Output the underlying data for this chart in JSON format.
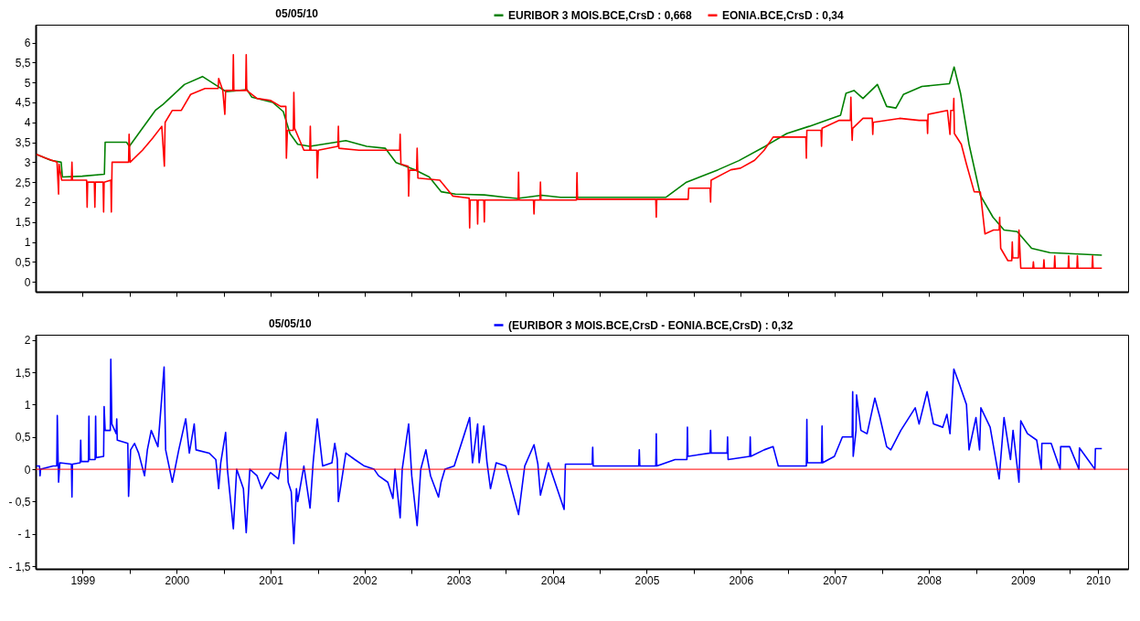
{
  "chart_data": [
    {
      "type": "line",
      "title": "05/05/10",
      "legend": "top",
      "tick_labels": "y",
      "xlim": [
        "1999-01-01",
        "2010-08-15"
      ],
      "xticks": [
        {
          "value": "1999-07-02",
          "label": null
        },
        {
          "value": "2000-01-01",
          "label": null
        },
        {
          "value": "2000-07-02",
          "label": null
        },
        {
          "value": "2001-01-01",
          "label": null
        },
        {
          "value": "2001-07-02",
          "label": null
        },
        {
          "value": "2002-01-01",
          "label": null
        },
        {
          "value": "2002-07-02",
          "label": null
        },
        {
          "value": "2003-01-01",
          "label": null
        },
        {
          "value": "2003-07-02",
          "label": null
        },
        {
          "value": "2004-01-01",
          "label": null
        },
        {
          "value": "2004-07-02",
          "label": null
        },
        {
          "value": "2005-01-01",
          "label": null
        },
        {
          "value": "2005-07-02",
          "label": null
        },
        {
          "value": "2006-01-01",
          "label": null
        },
        {
          "value": "2006-07-02",
          "label": null
        },
        {
          "value": "2007-01-01",
          "label": null
        },
        {
          "value": "2007-07-02",
          "label": null
        },
        {
          "value": "2008-01-01",
          "label": null
        },
        {
          "value": "2008-07-02",
          "label": null
        },
        {
          "value": "2009-01-01",
          "label": null
        },
        {
          "value": "2009-07-02",
          "label": null
        },
        {
          "value": "2010-01-01",
          "label": null
        },
        {
          "value": "2010-04-20",
          "label": null
        }
      ],
      "ylim": [
        -0.25,
        6.45
      ],
      "yticks": [
        0,
        {
          "value": 0.5,
          "label": "0,5"
        },
        1,
        {
          "value": 1.5,
          "label": "1,5"
        },
        2,
        {
          "value": 2.5,
          "label": "2,5"
        },
        3,
        {
          "value": 3.5,
          "label": "3,5"
        },
        4,
        {
          "value": 4.5,
          "label": "4,5"
        },
        5,
        {
          "value": 5.5,
          "label": "5,5"
        },
        6
      ],
      "series": [
        {
          "name": "EURIBOR 3 MOIS.BCE,CrsD : 0,668",
          "color": "#008000",
          "x": [
            "1999-01-04",
            "1999-03-01",
            "1999-04-10",
            "1999-04-15",
            "1999-07-01",
            "1999-09-25",
            "1999-09-28",
            "1999-12-20",
            "1999-12-31",
            "2000-02-05",
            "2000-04-10",
            "2000-05-10",
            "2000-08-01",
            "2000-10-10",
            "2000-12-10",
            "2001-01-10",
            "2001-04-01",
            "2001-04-20",
            "2001-07-10",
            "2001-08-20",
            "2001-09-15",
            "2001-10-15",
            "2001-12-01",
            "2002-04-20",
            "2002-07-10",
            "2002-09-20",
            "2002-11-01",
            "2003-01-10",
            "2003-03-10",
            "2003-04-25",
            "2003-06-20",
            "2003-10-10",
            "2004-01-01",
            "2004-02-15",
            "2004-05-20",
            "2004-08-01",
            "2005-09-15",
            "2005-12-01",
            "2006-04-05",
            "2006-06-25",
            "2006-10-05",
            "2006-12-28",
            "2007-03-25",
            "2007-07-25",
            "2007-08-15",
            "2007-09-15",
            "2007-10-20",
            "2007-12-15",
            "2008-01-20",
            "2008-02-25",
            "2008-03-25",
            "2008-06-05",
            "2008-09-20",
            "2008-10-08",
            "2008-11-02",
            "2008-12-05",
            "2009-01-18",
            "2009-03-08",
            "2009-04-20",
            "2009-06-10",
            "2009-08-05",
            "2009-10-15",
            "2010-05-05"
          ],
          "values": [
            3.2,
            3.05,
            3.0,
            2.63,
            2.65,
            2.7,
            3.5,
            3.5,
            3.4,
            3.72,
            4.3,
            4.45,
            4.95,
            5.15,
            4.9,
            4.77,
            4.82,
            4.63,
            4.5,
            4.27,
            3.72,
            3.45,
            3.4,
            3.54,
            3.4,
            3.35,
            2.99,
            2.82,
            2.63,
            2.26,
            2.2,
            2.18,
            2.12,
            2.09,
            2.17,
            2.12,
            2.12,
            2.49,
            2.81,
            3.04,
            3.4,
            3.72,
            3.9,
            4.18,
            4.73,
            4.8,
            4.6,
            4.95,
            4.4,
            4.36,
            4.7,
            4.9,
            4.97,
            5.39,
            4.73,
            3.45,
            2.17,
            1.62,
            1.3,
            1.26,
            0.84,
            0.73,
            0.668
          ]
        },
        {
          "name": "EONIA.BCE,CrsD : 0,34",
          "color": "#ff0000",
          "x": [
            "1999-01-04",
            "1999-02-10",
            "1999-03-25",
            "1999-03-31",
            "1999-04-02",
            "1999-04-12",
            "1999-05-20",
            "1999-05-22",
            "1999-05-24",
            "1999-07-18",
            "1999-07-20",
            "1999-07-22",
            "1999-08-17",
            "1999-08-19",
            "1999-08-21",
            "1999-09-20",
            "1999-09-22",
            "1999-09-24",
            "1999-10-20",
            "1999-10-22",
            "1999-10-25",
            "1999-12-28",
            "1999-12-30",
            "2000-01-03",
            "2000-02-20",
            "2000-03-30",
            "2000-05-05",
            "2000-05-15",
            "2000-05-18",
            "2000-06-15",
            "2000-07-20",
            "2000-08-25",
            "2000-10-20",
            "2000-12-10",
            "2000-12-12",
            "2000-12-28",
            "2001-01-05",
            "2001-01-08",
            "2001-02-05",
            "2001-02-07",
            "2001-02-09",
            "2001-03-27",
            "2001-03-29",
            "2001-03-31",
            "2001-05-10",
            "2001-07-01",
            "2001-08-10",
            "2001-08-30",
            "2001-09-01",
            "2001-09-05",
            "2001-09-28",
            "2001-09-30",
            "2001-10-03",
            "2001-11-08",
            "2001-12-01",
            "2001-12-03",
            "2001-12-05",
            "2001-12-28",
            "2001-12-30",
            "2002-01-03",
            "2002-03-20",
            "2002-03-22",
            "2002-03-24",
            "2002-06-10",
            "2002-09-15",
            "2002-11-15",
            "2002-11-17",
            "2002-11-20",
            "2002-12-18",
            "2002-12-20",
            "2002-12-23",
            "2003-01-20",
            "2003-01-22",
            "2003-01-25",
            "2003-04-20",
            "2003-06-10",
            "2003-08-12",
            "2003-08-14",
            "2003-08-16",
            "2003-09-12",
            "2003-09-14",
            "2003-09-16",
            "2003-10-08",
            "2003-10-10",
            "2003-10-12",
            "2004-02-18",
            "2004-02-20",
            "2004-02-22",
            "2004-04-18",
            "2004-04-20",
            "2004-04-22",
            "2004-05-13",
            "2004-05-15",
            "2004-05-17",
            "2004-10-02",
            "2004-10-04",
            "2004-10-06",
            "2005-08-06",
            "2005-08-08",
            "2005-08-10",
            "2005-12-10",
            "2005-12-12",
            "2006-03-05",
            "2006-03-07",
            "2006-03-09",
            "2006-05-25",
            "2006-07-01",
            "2006-08-25",
            "2006-10-01",
            "2006-11-05",
            "2007-03-12",
            "2007-03-14",
            "2007-03-16",
            "2007-05-10",
            "2007-05-12",
            "2007-05-14",
            "2007-07-20",
            "2007-09-01",
            "2007-09-03",
            "2007-09-05",
            "2007-09-08",
            "2007-09-10",
            "2007-10-20",
            "2007-11-25",
            "2007-11-27",
            "2007-11-29",
            "2008-03-10",
            "2008-05-25",
            "2008-06-25",
            "2008-06-27",
            "2008-06-29",
            "2008-09-12",
            "2008-09-22",
            "2008-09-25",
            "2008-10-05",
            "2008-10-07",
            "2008-10-09",
            "2008-11-05",
            "2008-11-25",
            "2008-12-25",
            "2009-01-18",
            "2009-02-05",
            "2009-03-10",
            "2009-04-01",
            "2009-04-03",
            "2009-04-07",
            "2009-05-05",
            "2009-05-20",
            "2009-05-22",
            "2009-05-24",
            "2009-06-15",
            "2009-06-17",
            "2009-06-24",
            "2009-08-10",
            "2009-08-12",
            "2009-08-14",
            "2009-09-20",
            "2009-09-22",
            "2009-09-24",
            "2009-11-01",
            "2009-11-03",
            "2009-11-05",
            "2009-12-25",
            "2009-12-27",
            "2009-12-29",
            "2010-01-28",
            "2010-01-30",
            "2010-02-01",
            "2010-03-28",
            "2010-03-30",
            "2010-04-01",
            "2010-05-05"
          ],
          "values": [
            3.2,
            3.1,
            3.0,
            2.2,
            2.95,
            2.55,
            2.55,
            3.0,
            2.55,
            2.55,
            1.87,
            2.5,
            2.5,
            1.87,
            2.5,
            2.5,
            1.75,
            2.5,
            2.55,
            1.75,
            3.0,
            3.0,
            3.7,
            3.0,
            3.3,
            3.6,
            3.9,
            2.9,
            4.0,
            4.3,
            4.3,
            4.7,
            4.85,
            4.85,
            5.1,
            4.8,
            4.2,
            4.8,
            4.8,
            5.7,
            4.8,
            4.8,
            5.7,
            4.8,
            4.6,
            4.55,
            4.4,
            4.4,
            3.1,
            3.8,
            3.8,
            4.75,
            3.85,
            3.3,
            3.3,
            3.9,
            3.3,
            3.3,
            2.6,
            3.3,
            3.4,
            3.9,
            3.35,
            3.3,
            3.3,
            3.3,
            3.7,
            2.95,
            2.9,
            2.15,
            2.8,
            2.8,
            3.35,
            2.6,
            2.55,
            2.15,
            2.1,
            1.35,
            2.05,
            2.05,
            1.45,
            2.05,
            2.05,
            1.5,
            2.05,
            2.05,
            2.75,
            2.05,
            2.05,
            1.7,
            2.05,
            2.05,
            2.5,
            2.05,
            2.05,
            2.74,
            2.07,
            2.07,
            1.62,
            2.07,
            2.07,
            2.35,
            2.35,
            2.0,
            2.55,
            2.81,
            2.85,
            3.05,
            3.3,
            3.63,
            3.63,
            3.1,
            3.8,
            3.8,
            3.4,
            3.85,
            4.05,
            4.05,
            4.63,
            4.05,
            3.55,
            3.85,
            4.1,
            4.1,
            3.7,
            4.0,
            4.1,
            4.05,
            4.05,
            3.72,
            4.2,
            4.3,
            3.7,
            4.3,
            4.3,
            4.6,
            3.72,
            3.45,
            2.95,
            2.26,
            2.25,
            1.2,
            1.3,
            1.3,
            1.62,
            0.84,
            0.53,
            0.53,
            1.0,
            0.6,
            0.6,
            1.3,
            0.34,
            0.34,
            0.5,
            0.34,
            0.34,
            0.55,
            0.34,
            0.34,
            0.65,
            0.34,
            0.34,
            0.65,
            0.34,
            0.34,
            0.65,
            0.34,
            0.34,
            0.65,
            0.34,
            0.34
          ]
        }
      ]
    },
    {
      "type": "line",
      "title": "05/05/10",
      "legend": "top",
      "xlim": [
        "1999-01-01",
        "2010-08-15"
      ],
      "xticks": [
        {
          "value": "1999-07-02",
          "label": "1999"
        },
        {
          "value": "2000-01-01",
          "label": null
        },
        {
          "value": "2000-07-02",
          "label": "2000"
        },
        {
          "value": "2001-01-01",
          "label": null
        },
        {
          "value": "2001-07-02",
          "label": "2001"
        },
        {
          "value": "2002-01-01",
          "label": null
        },
        {
          "value": "2002-07-02",
          "label": "2002"
        },
        {
          "value": "2003-01-01",
          "label": null
        },
        {
          "value": "2003-07-02",
          "label": "2003"
        },
        {
          "value": "2004-01-01",
          "label": null
        },
        {
          "value": "2004-07-02",
          "label": "2004"
        },
        {
          "value": "2005-01-01",
          "label": null
        },
        {
          "value": "2005-07-02",
          "label": "2005"
        },
        {
          "value": "2006-01-01",
          "label": null
        },
        {
          "value": "2006-07-02",
          "label": "2006"
        },
        {
          "value": "2007-01-01",
          "label": null
        },
        {
          "value": "2007-07-02",
          "label": "2007"
        },
        {
          "value": "2008-01-01",
          "label": null
        },
        {
          "value": "2008-07-02",
          "label": "2008"
        },
        {
          "value": "2009-01-01",
          "label": null
        },
        {
          "value": "2009-07-02",
          "label": "2009"
        },
        {
          "value": "2010-01-01",
          "label": null
        },
        {
          "value": "2010-04-20",
          "label": "2010"
        }
      ],
      "ylim": [
        -1.54,
        2.08
      ],
      "yticks": [
        {
          "value": -1.5,
          "label": "- 1,5"
        },
        {
          "value": -1,
          "label": "- 1"
        },
        {
          "value": -0.5,
          "label": "- 0,5"
        },
        0,
        {
          "value": 0.5,
          "label": "0,5"
        },
        1,
        {
          "value": 1.5,
          "label": "1,5"
        },
        2
      ],
      "ref_lines": [
        {
          "axis": "y",
          "value": 0,
          "color": "#ff0000"
        }
      ],
      "series": [
        {
          "name": "(EURIBOR 3 MOIS.BCE,CrsD - EONIA.BCE,CrsD) : 0,32",
          "color": "#0000ff",
          "x": [
            "1999-01-04",
            "1999-01-16",
            "1999-01-18",
            "1999-01-20",
            "1999-03-10",
            "1999-03-24",
            "1999-03-26",
            "1999-03-31",
            "1999-04-05",
            "1999-05-20",
            "1999-05-22",
            "1999-05-24",
            "1999-06-23",
            "1999-06-25",
            "1999-06-27",
            "1999-07-25",
            "1999-07-27",
            "1999-07-29",
            "1999-08-20",
            "1999-08-22",
            "1999-08-24",
            "1999-09-22",
            "1999-09-24",
            "1999-09-28",
            "1999-10-18",
            "1999-10-20",
            "1999-10-24",
            "1999-11-10",
            "1999-11-12",
            "1999-11-14",
            "1999-12-25",
            "1999-12-28",
            "2000-01-05",
            "2000-01-20",
            "2000-02-05",
            "2000-02-28",
            "2000-03-10",
            "2000-03-25",
            "2000-04-20",
            "2000-05-14",
            "2000-05-20",
            "2000-06-15",
            "2000-07-10",
            "2000-08-06",
            "2000-08-20",
            "2000-09-08",
            "2000-09-15",
            "2000-11-05",
            "2000-12-01",
            "2000-12-12",
            "2000-12-20",
            "2001-01-08",
            "2001-01-15",
            "2001-02-07",
            "2001-02-20",
            "2001-03-18",
            "2001-03-29",
            "2001-04-12",
            "2001-05-10",
            "2001-05-28",
            "2001-07-01",
            "2001-08-01",
            "2001-08-30",
            "2001-09-08",
            "2001-09-20",
            "2001-09-30",
            "2001-10-10",
            "2001-10-15",
            "2001-11-08",
            "2001-12-02",
            "2001-12-14",
            "2001-12-30",
            "2002-01-20",
            "2002-02-25",
            "2002-03-08",
            "2002-03-18",
            "2002-03-22",
            "2002-04-20",
            "2002-05-25",
            "2002-07-01",
            "2002-08-08",
            "2002-08-25",
            "2002-09-30",
            "2002-10-20",
            "2002-10-28",
            "2002-11-17",
            "2002-11-25",
            "2002-12-20",
            "2003-01-01",
            "2003-01-22",
            "2003-02-05",
            "2003-02-25",
            "2003-03-15",
            "2003-04-15",
            "2003-04-25",
            "2003-05-10",
            "2003-06-15",
            "2003-08-14",
            "2003-08-25",
            "2003-09-14",
            "2003-09-20",
            "2003-10-08",
            "2003-10-20",
            "2003-11-03",
            "2003-11-25",
            "2004-01-01",
            "2004-02-20",
            "2004-03-15",
            "2004-04-20",
            "2004-05-05",
            "2004-05-15",
            "2004-06-15",
            "2004-08-15",
            "2004-08-20",
            "2004-12-02",
            "2004-12-04",
            "2004-12-06",
            "2005-06-01",
            "2005-06-03",
            "2005-06-05",
            "2005-08-06",
            "2005-08-08",
            "2005-08-10",
            "2005-10-20",
            "2005-12-05",
            "2005-12-07",
            "2005-12-09",
            "2006-03-05",
            "2006-03-07",
            "2006-03-09",
            "2006-05-10",
            "2006-05-12",
            "2006-05-14",
            "2006-08-06",
            "2006-08-08",
            "2006-08-10",
            "2006-10-01",
            "2006-11-05",
            "2006-11-25",
            "2007-03-14",
            "2007-03-16",
            "2007-03-18",
            "2007-05-12",
            "2007-05-14",
            "2007-05-16",
            "2007-07-01",
            "2007-08-01",
            "2007-09-08",
            "2007-09-10",
            "2007-09-12",
            "2007-09-23",
            "2007-09-25",
            "2007-10-12",
            "2007-11-05",
            "2007-12-05",
            "2007-12-25",
            "2008-01-20",
            "2008-02-05",
            "2008-03-15",
            "2008-05-10",
            "2008-05-25",
            "2008-06-25",
            "2008-07-20",
            "2008-08-25",
            "2008-09-10",
            "2008-09-22",
            "2008-10-07",
            "2008-10-30",
            "2008-11-25",
            "2008-12-05",
            "2009-01-01",
            "2009-01-15",
            "2009-01-20",
            "2009-02-25",
            "2009-04-01",
            "2009-04-20",
            "2009-05-15",
            "2009-05-25",
            "2009-06-17",
            "2009-06-24",
            "2009-07-20",
            "2009-08-25",
            "2009-09-12",
            "2009-09-14",
            "2009-10-20",
            "2009-11-24",
            "2009-11-26",
            "2009-12-31",
            "2010-02-05",
            "2010-02-07",
            "2010-04-08",
            "2010-04-10",
            "2010-05-05"
          ],
          "values": [
            0.05,
            0.05,
            -0.1,
            0.0,
            0.05,
            0.05,
            0.83,
            -0.2,
            0.1,
            0.08,
            -0.43,
            0.08,
            0.1,
            0.45,
            0.12,
            0.12,
            0.82,
            0.15,
            0.15,
            0.82,
            0.18,
            0.2,
            0.97,
            0.6,
            0.6,
            1.7,
            0.7,
            0.55,
            0.78,
            0.45,
            0.4,
            -0.42,
            0.3,
            0.4,
            0.25,
            -0.1,
            0.3,
            0.6,
            0.35,
            1.58,
            0.3,
            -0.2,
            0.3,
            0.78,
            0.25,
            0.7,
            0.3,
            0.25,
            0.15,
            -0.3,
            0.1,
            0.57,
            0.0,
            -0.92,
            0.0,
            -0.3,
            -0.98,
            0.0,
            -0.1,
            -0.3,
            -0.05,
            -0.15,
            0.57,
            -0.2,
            -0.35,
            -1.15,
            -0.3,
            -0.5,
            0.05,
            -0.6,
            0.1,
            0.78,
            0.05,
            0.1,
            0.4,
            0.15,
            -0.5,
            0.25,
            0.15,
            0.05,
            0.0,
            -0.1,
            -0.2,
            -0.45,
            0.0,
            -0.75,
            0.0,
            0.7,
            -0.1,
            -0.87,
            0.0,
            0.3,
            -0.1,
            -0.43,
            -0.2,
            0.0,
            0.05,
            0.8,
            0.1,
            0.7,
            0.1,
            0.67,
            0.12,
            -0.3,
            0.1,
            0.05,
            -0.7,
            0.05,
            0.38,
            0.08,
            -0.4,
            0.1,
            -0.62,
            0.08,
            0.08,
            0.34,
            0.05,
            0.05,
            0.3,
            0.05,
            0.05,
            0.55,
            0.05,
            0.15,
            0.15,
            0.65,
            0.2,
            0.25,
            0.6,
            0.25,
            0.25,
            0.5,
            0.15,
            0.2,
            0.5,
            0.2,
            0.3,
            0.35,
            0.05,
            0.05,
            0.77,
            0.1,
            0.1,
            0.67,
            0.1,
            0.2,
            0.5,
            0.5,
            1.2,
            0.2,
            0.6,
            1.15,
            0.6,
            0.55,
            1.1,
            0.8,
            0.35,
            0.3,
            0.6,
            0.95,
            0.7,
            1.2,
            0.7,
            0.65,
            0.85,
            0.55,
            1.55,
            1.3,
            1.0,
            0.3,
            0.8,
            0.3,
            0.95,
            0.65,
            -0.15,
            0.8,
            0.15,
            0.6,
            -0.2,
            0.75,
            0.55,
            0.45,
            0.0,
            0.4,
            0.4,
            0.0,
            0.35,
            0.35,
            0.0,
            0.33,
            0.0,
            0.32,
            0.32
          ]
        }
      ]
    }
  ]
}
